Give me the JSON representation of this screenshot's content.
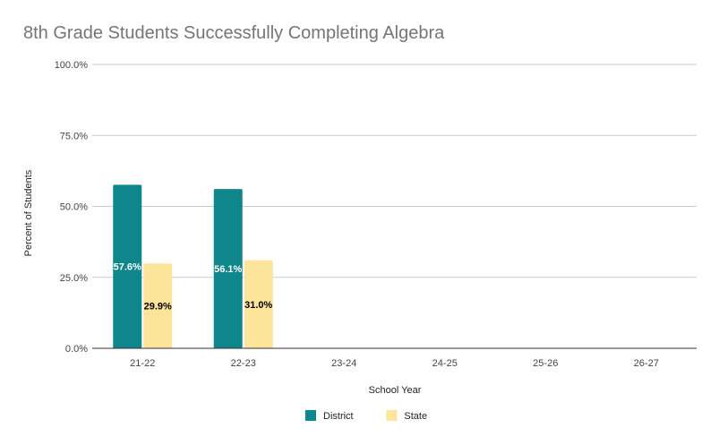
{
  "chart_data": {
    "type": "bar",
    "title": "8th Grade Students Successfully Completing Algebra",
    "xlabel": "School Year",
    "ylabel": "Percent of Students",
    "categories": [
      "21-22",
      "22-23",
      "23-24",
      "24-25",
      "25-26",
      "26-27"
    ],
    "series": [
      {
        "name": "District",
        "values": [
          57.6,
          56.1,
          null,
          null,
          null,
          null
        ],
        "labels": [
          "57.6%",
          "56.1%",
          "",
          "",
          "",
          ""
        ],
        "color": "#0e868b",
        "label_color": "#ffffff"
      },
      {
        "name": "State",
        "values": [
          29.9,
          31.0,
          null,
          null,
          null,
          null
        ],
        "labels": [
          "29.9%",
          "31.0%",
          "",
          "",
          "",
          ""
        ],
        "color": "#fde49b",
        "label_color": "#000000"
      }
    ],
    "yticks": [
      0,
      25,
      50,
      75,
      100
    ],
    "ytick_labels": [
      "0.0%",
      "25.0%",
      "50.0%",
      "75.0%",
      "100.0%"
    ],
    "ylim": [
      0,
      100
    ],
    "grid": true,
    "legend_position": "bottom"
  }
}
